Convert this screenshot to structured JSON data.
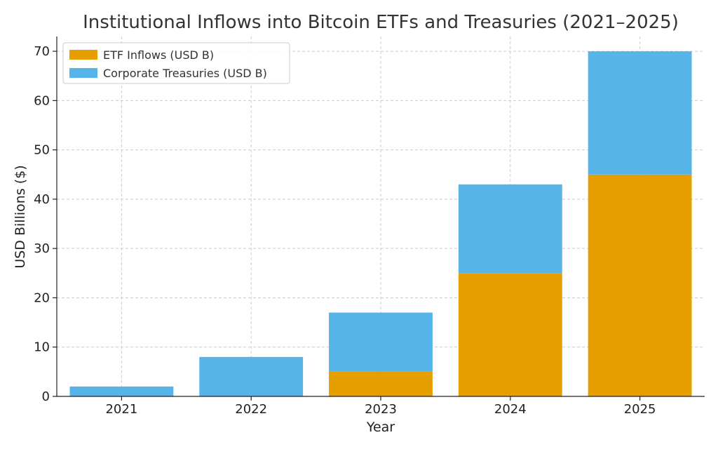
{
  "chart_data": {
    "type": "bar",
    "stacked": true,
    "title": "Institutional Inflows into Bitcoin ETFs and Treasuries (2021–2025)",
    "xlabel": "Year",
    "ylabel": "USD Billions ($)",
    "categories": [
      "2021",
      "2022",
      "2023",
      "2024",
      "2025"
    ],
    "series": [
      {
        "name": "ETF Inflows (USD B)",
        "color": "#E69F00",
        "values": [
          0,
          0,
          5,
          25,
          45
        ]
      },
      {
        "name": "Corporate Treasuries (USD B)",
        "color": "#56B4E9",
        "values": [
          2,
          8,
          12,
          18,
          25
        ]
      }
    ],
    "ylim": [
      0,
      73
    ],
    "yticks": [
      0,
      10,
      20,
      30,
      40,
      50,
      60,
      70
    ],
    "grid": true,
    "legend_position": "top-left"
  }
}
